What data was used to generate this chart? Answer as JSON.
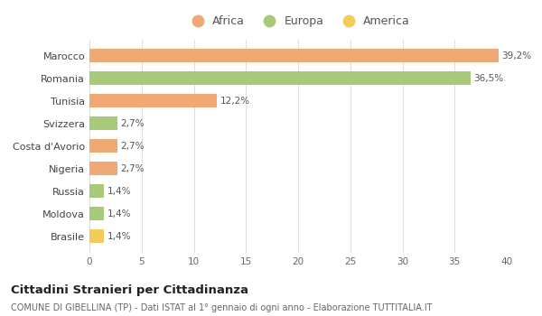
{
  "categories": [
    "Brasile",
    "Moldova",
    "Russia",
    "Nigeria",
    "Costa d'Avorio",
    "Svizzera",
    "Tunisia",
    "Romania",
    "Marocco"
  ],
  "values": [
    1.4,
    1.4,
    1.4,
    2.7,
    2.7,
    2.7,
    12.2,
    36.5,
    39.2
  ],
  "labels": [
    "1,4%",
    "1,4%",
    "1,4%",
    "2,7%",
    "2,7%",
    "2,7%",
    "12,2%",
    "36,5%",
    "39,2%"
  ],
  "colors": [
    "#f2cc5a",
    "#a8c87a",
    "#a8c87a",
    "#f0a875",
    "#f0a875",
    "#a8c87a",
    "#f0a875",
    "#a8c87a",
    "#f0a875"
  ],
  "legend_labels": [
    "Africa",
    "Europa",
    "America"
  ],
  "legend_colors": [
    "#f0a875",
    "#a8c87a",
    "#f2cc5a"
  ],
  "title": "Cittadini Stranieri per Cittadinanza",
  "subtitle": "COMUNE DI GIBELLINA (TP) - Dati ISTAT al 1° gennaio di ogni anno - Elaborazione TUTTITALIA.IT",
  "xlim": [
    0,
    40
  ],
  "xticks": [
    0,
    5,
    10,
    15,
    20,
    25,
    30,
    35,
    40
  ],
  "bg_color": "#ffffff",
  "grid_color": "#e0e0e0",
  "bar_height": 0.6
}
